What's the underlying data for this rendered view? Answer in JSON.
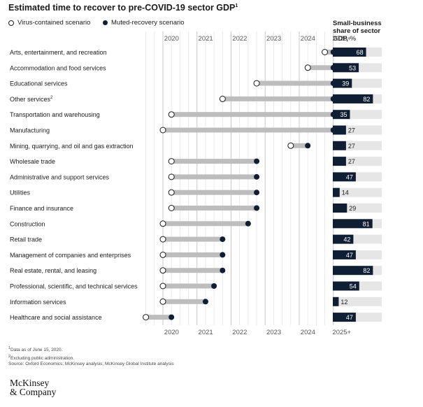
{
  "title": "Estimated time to recover to pre-COVID-19 sector GDP",
  "title_footnote": "1",
  "legend": {
    "virus_contained": "Virus-contained scenario",
    "muted_recovery": "Muted-recovery scenario"
  },
  "small_business_title": {
    "line1": "Small-business",
    "line2": "share of sector",
    "line3": "GDP,",
    "unit": "%"
  },
  "chart_data": {
    "type": "dumbbell",
    "title": "Estimated time to recover to pre-COVID-19 sector GDP",
    "x_tick_labels": [
      "2020",
      "2021",
      "2022",
      "2023",
      "2024",
      "2025+"
    ],
    "x_ticks": [
      2020,
      2021,
      2022,
      2023,
      2024,
      2025
    ],
    "xlim": [
      2019.5,
      2025.25
    ],
    "series": [
      {
        "name": "Virus-contained scenario",
        "marker": "open-circle"
      },
      {
        "name": "Muted-recovery scenario",
        "marker": "filled-circle"
      }
    ],
    "rows": [
      {
        "sector": "Arts, entertainment, and recreation",
        "footnote": "",
        "virus_contained": 2024.75,
        "muted_recovery": 2025.0,
        "small_business_share": 68
      },
      {
        "sector": "Accommodation and food services",
        "footnote": "",
        "virus_contained": 2024.25,
        "muted_recovery": 2025.0,
        "small_business_share": 53
      },
      {
        "sector": "Educational services",
        "footnote": "",
        "virus_contained": 2022.75,
        "muted_recovery": 2025.0,
        "small_business_share": 39
      },
      {
        "sector": "Other services",
        "footnote": "2",
        "virus_contained": 2021.75,
        "muted_recovery": 2025.0,
        "small_business_share": 82
      },
      {
        "sector": "Transportation and warehousing",
        "footnote": "",
        "virus_contained": 2020.25,
        "muted_recovery": 2025.0,
        "small_business_share": 35
      },
      {
        "sector": "Manufacturing",
        "footnote": "",
        "virus_contained": 2020.0,
        "muted_recovery": 2025.0,
        "small_business_share": 27
      },
      {
        "sector": "Mining, quarrying, and oil and gas extraction",
        "footnote": "",
        "virus_contained": 2023.75,
        "muted_recovery": 2024.25,
        "small_business_share": 27
      },
      {
        "sector": "Wholesale trade",
        "footnote": "",
        "virus_contained": 2020.25,
        "muted_recovery": 2022.75,
        "small_business_share": 27
      },
      {
        "sector": "Administrative and support services",
        "footnote": "",
        "virus_contained": 2020.25,
        "muted_recovery": 2022.75,
        "small_business_share": 47
      },
      {
        "sector": "Utilities",
        "footnote": "",
        "virus_contained": 2020.25,
        "muted_recovery": 2022.75,
        "small_business_share": 14
      },
      {
        "sector": "Finance and insurance",
        "footnote": "",
        "virus_contained": 2020.25,
        "muted_recovery": 2022.75,
        "small_business_share": 29
      },
      {
        "sector": "Construction",
        "footnote": "",
        "virus_contained": 2020.0,
        "muted_recovery": 2022.5,
        "small_business_share": 81
      },
      {
        "sector": "Retail trade",
        "footnote": "",
        "virus_contained": 2020.0,
        "muted_recovery": 2021.75,
        "small_business_share": 42
      },
      {
        "sector": "Management of companies and enterprises",
        "footnote": "",
        "virus_contained": 2020.0,
        "muted_recovery": 2021.75,
        "small_business_share": 47
      },
      {
        "sector": "Real estate, rental, and leasing",
        "footnote": "",
        "virus_contained": 2020.0,
        "muted_recovery": 2021.75,
        "small_business_share": 82
      },
      {
        "sector": "Professional, scientific, and technical services",
        "footnote": "",
        "virus_contained": 2020.0,
        "muted_recovery": 2021.5,
        "small_business_share": 54
      },
      {
        "sector": "Information services",
        "footnote": "",
        "virus_contained": 2020.0,
        "muted_recovery": 2021.25,
        "small_business_share": 12
      },
      {
        "sector": "Healthcare and social assistance",
        "footnote": "",
        "virus_contained": 2019.5,
        "muted_recovery": 2020.25,
        "small_business_share": 47
      }
    ],
    "small_business_scale_max": 100
  },
  "footnotes": {
    "note1": "Data as of June 15, 2020.",
    "note2": "Excluding public administration.",
    "source": "Source: Oxford Economics; McKinsey analysis; McKinsey Global Institute analysis",
    "mark1": "1",
    "mark2": "2"
  },
  "logo": {
    "line1": "McKinsey",
    "line2": "& Company"
  },
  "colors": {
    "navy": "#0f1e33",
    "bar_gray": "#bdbdbd",
    "track_gray": "#e6e6e6",
    "grid_gray": "#d4d4d4"
  }
}
